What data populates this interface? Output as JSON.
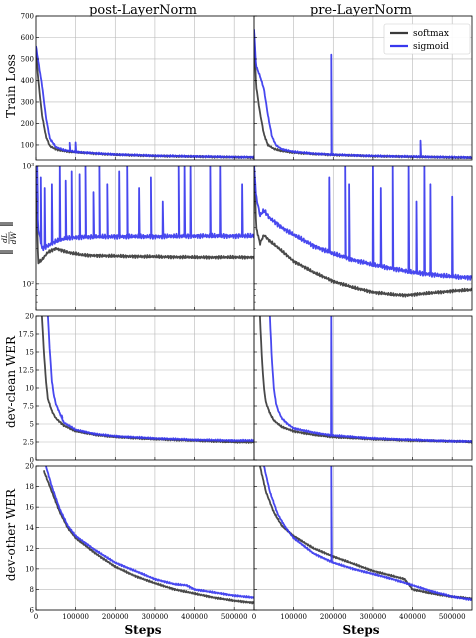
{
  "figure": {
    "column_titles": [
      "post-LayerNorm",
      "pre-LayerNorm"
    ],
    "row_labels": [
      "Train Loss",
      "||dL/dW||",
      "dev-clean WER",
      "dev-other WER"
    ],
    "gradnorm_label_parts": {
      "numerator": "dL",
      "denominator": "dW"
    },
    "xlabel": "Steps",
    "legend": {
      "entries": [
        "softmax",
        "sigmoid"
      ],
      "placement": "top-right of pre-LayerNorm Train Loss panel"
    },
    "colors": {
      "softmax": "#3a3a3a",
      "sigmoid": "#3838ee",
      "grid": "#b8b8b8"
    }
  },
  "chart_data": [
    {
      "type": "line",
      "row": "Train Loss",
      "column": "post-LayerNorm",
      "xlim": [
        0,
        550000
      ],
      "ylim": [
        30,
        700
      ],
      "x_ticks": [
        0,
        100000,
        200000,
        300000,
        400000,
        500000
      ],
      "y_ticks": [
        100,
        200,
        300,
        400,
        500,
        600,
        700
      ],
      "y_scale": "linear",
      "grid": true,
      "series": [
        {
          "name": "softmax",
          "x": [
            0,
            5000,
            15000,
            25000,
            35000,
            50000,
            70000,
            100000,
            150000,
            200000,
            300000,
            400000,
            500000,
            550000
          ],
          "y": [
            560,
            420,
            240,
            140,
            95,
            80,
            72,
            66,
            60,
            55,
            49,
            46,
            43,
            42
          ]
        },
        {
          "name": "sigmoid",
          "x": [
            0,
            5000,
            15000,
            25000,
            35000,
            50000,
            70000,
            100000,
            150000,
            200000,
            300000,
            400000,
            500000,
            550000
          ],
          "y": [
            560,
            500,
            380,
            230,
            130,
            90,
            76,
            68,
            61,
            56,
            50,
            47,
            44,
            43
          ],
          "spikes": [
            [
              85000,
              110
            ],
            [
              100000,
              112
            ]
          ]
        }
      ]
    },
    {
      "type": "line",
      "row": "Train Loss",
      "column": "pre-LayerNorm",
      "xlim": [
        0,
        550000
      ],
      "ylim": [
        30,
        700
      ],
      "x_ticks": [
        0,
        100000,
        200000,
        300000,
        400000,
        500000
      ],
      "y_ticks": [
        100,
        200,
        300,
        400,
        500,
        600,
        700
      ],
      "y_scale": "linear",
      "grid": true,
      "series": [
        {
          "name": "softmax",
          "x": [
            0,
            5000,
            15000,
            25000,
            35000,
            50000,
            70000,
            100000,
            150000,
            200000,
            300000,
            400000,
            500000,
            550000
          ],
          "y": [
            640,
            380,
            250,
            150,
            100,
            82,
            72,
            65,
            58,
            54,
            48,
            45,
            42,
            41
          ]
        },
        {
          "name": "sigmoid",
          "x": [
            0,
            5000,
            15000,
            25000,
            35000,
            45000,
            55000,
            70000,
            100000,
            150000,
            200000,
            300000,
            400000,
            500000,
            550000
          ],
          "y": [
            640,
            470,
            420,
            360,
            240,
            140,
            100,
            80,
            68,
            60,
            55,
            49,
            46,
            43,
            42
          ],
          "spikes": [
            [
              195000,
              520
            ],
            [
              420000,
              120
            ]
          ]
        }
      ]
    },
    {
      "type": "line",
      "row": "||dL/dW||",
      "column": "post-LayerNorm",
      "xlim": [
        0,
        550000
      ],
      "ylim": [
        60,
        1000
      ],
      "x_ticks": [
        0,
        100000,
        200000,
        300000,
        400000,
        500000
      ],
      "y_ticks": [
        100,
        1000
      ],
      "y_tick_labels": [
        "10²",
        "10³"
      ],
      "y_scale": "log",
      "grid": true,
      "series": [
        {
          "name": "softmax",
          "x": [
            0,
            5000,
            15000,
            30000,
            50000,
            80000,
            120000,
            200000,
            300000,
            400000,
            500000,
            550000
          ],
          "y": [
            600,
            150,
            160,
            185,
            200,
            185,
            175,
            172,
            170,
            168,
            168,
            168
          ]
        },
        {
          "name": "sigmoid",
          "x": [
            0,
            5000,
            15000,
            30000,
            50000,
            80000,
            120000,
            200000,
            300000,
            400000,
            500000,
            550000
          ],
          "y": [
            900,
            300,
            200,
            210,
            230,
            245,
            250,
            252,
            252,
            255,
            255,
            255
          ],
          "spikes": [
            [
              3000,
              1000
            ],
            [
              12000,
              800
            ],
            [
              22000,
              650
            ],
            [
              40000,
              700
            ],
            [
              60000,
              1000
            ],
            [
              75000,
              750
            ],
            [
              90000,
              900
            ],
            [
              110000,
              850
            ],
            [
              125000,
              1000
            ],
            [
              145000,
              600
            ],
            [
              160000,
              1000
            ],
            [
              180000,
              700
            ],
            [
              210000,
              900
            ],
            [
              230000,
              1000
            ],
            [
              260000,
              650
            ],
            [
              290000,
              800
            ],
            [
              320000,
              500
            ],
            [
              360000,
              1000
            ],
            [
              375000,
              1000
            ],
            [
              390000,
              1000
            ],
            [
              440000,
              1000
            ],
            [
              465000,
              1000
            ],
            [
              520000,
              700
            ]
          ]
        }
      ]
    },
    {
      "type": "line",
      "row": "||dL/dW||",
      "column": "pre-LayerNorm",
      "xlim": [
        0,
        550000
      ],
      "ylim": [
        60,
        1000
      ],
      "x_ticks": [
        0,
        100000,
        200000,
        300000,
        400000,
        500000
      ],
      "y_ticks": [
        100,
        1000
      ],
      "y_tick_labels": [
        "10²",
        "10³"
      ],
      "y_scale": "log",
      "grid": true,
      "series": [
        {
          "name": "softmax",
          "x": [
            0,
            5000,
            15000,
            25000,
            40000,
            70000,
            100000,
            150000,
            200000,
            250000,
            300000,
            350000,
            380000,
            420000,
            470000,
            500000,
            550000
          ],
          "y": [
            1000,
            300,
            220,
            260,
            230,
            190,
            155,
            125,
            105,
            93,
            85,
            81,
            80,
            82,
            85,
            87,
            89
          ]
        },
        {
          "name": "sigmoid",
          "x": [
            0,
            5000,
            15000,
            25000,
            40000,
            70000,
            100000,
            150000,
            200000,
            250000,
            300000,
            350000,
            400000,
            450000,
            500000,
            550000
          ],
          "y": [
            1000,
            550,
            380,
            420,
            360,
            300,
            260,
            210,
            180,
            160,
            145,
            135,
            125,
            120,
            115,
            113
          ],
          "spikes": [
            [
              190000,
              800
            ],
            [
              230000,
              1000
            ],
            [
              240000,
              700
            ],
            [
              300000,
              1000
            ],
            [
              320000,
              650
            ],
            [
              350000,
              1000
            ],
            [
              390000,
              1000
            ],
            [
              410000,
              500
            ],
            [
              430000,
              1000
            ],
            [
              445000,
              700
            ],
            [
              500000,
              550
            ]
          ]
        }
      ]
    },
    {
      "type": "line",
      "row": "dev-clean WER",
      "column": "post-LayerNorm",
      "xlim": [
        0,
        550000
      ],
      "ylim": [
        0,
        20
      ],
      "x_ticks": [
        0,
        100000,
        200000,
        300000,
        400000,
        500000
      ],
      "y_ticks": [
        0.0,
        2.5,
        5.0,
        7.5,
        10.0,
        12.5,
        15.0,
        17.5,
        20.0
      ],
      "y_scale": "linear",
      "grid": true,
      "series": [
        {
          "name": "softmax",
          "x": [
            15000,
            20000,
            25000,
            30000,
            40000,
            50000,
            70000,
            100000,
            150000,
            200000,
            300000,
            400000,
            500000,
            550000
          ],
          "y": [
            20,
            15,
            11,
            8.5,
            6.8,
            5.8,
            4.8,
            4.0,
            3.5,
            3.2,
            2.9,
            2.7,
            2.5,
            2.5
          ]
        },
        {
          "name": "sigmoid",
          "x": [
            30000,
            35000,
            40000,
            45000,
            50000,
            60000,
            70000,
            100000,
            150000,
            200000,
            300000,
            400000,
            500000,
            550000
          ],
          "y": [
            20,
            15,
            11,
            9,
            7.8,
            6.5,
            5.2,
            4.2,
            3.6,
            3.3,
            3.0,
            2.8,
            2.7,
            2.7
          ],
          "spikes": [
            [
              65000,
              6.2
            ]
          ]
        }
      ]
    },
    {
      "type": "line",
      "row": "dev-clean WER",
      "column": "pre-LayerNorm",
      "xlim": [
        0,
        550000
      ],
      "ylim": [
        0,
        20
      ],
      "x_ticks": [
        0,
        100000,
        200000,
        300000,
        400000,
        500000
      ],
      "y_ticks": [
        0.0,
        2.5,
        5.0,
        7.5,
        10.0,
        12.5,
        15.0,
        17.5,
        20.0
      ],
      "y_scale": "linear",
      "grid": true,
      "series": [
        {
          "name": "softmax",
          "x": [
            15000,
            20000,
            25000,
            30000,
            40000,
            50000,
            70000,
            100000,
            150000,
            200000,
            300000,
            400000,
            500000,
            550000
          ],
          "y": [
            20,
            14,
            10,
            8,
            6.5,
            5.5,
            4.6,
            4.0,
            3.5,
            3.2,
            2.9,
            2.7,
            2.6,
            2.5
          ]
        },
        {
          "name": "sigmoid",
          "x": [
            40000,
            45000,
            50000,
            55000,
            60000,
            70000,
            85000,
            100000,
            150000,
            200000,
            300000,
            400000,
            500000,
            550000
          ],
          "y": [
            20,
            14,
            10,
            8,
            7,
            5.8,
            5.0,
            4.4,
            3.8,
            3.4,
            3.0,
            2.8,
            2.6,
            2.6
          ],
          "spikes": [
            [
              195000,
              20
            ]
          ]
        }
      ]
    },
    {
      "type": "line",
      "row": "dev-other WER",
      "column": "post-LayerNorm",
      "xlim": [
        0,
        550000
      ],
      "ylim": [
        6,
        20
      ],
      "x_ticks": [
        0,
        100000,
        200000,
        300000,
        400000,
        500000
      ],
      "y_ticks": [
        6,
        8,
        10,
        12,
        14,
        16,
        18,
        20
      ],
      "y_scale": "linear",
      "grid": true,
      "series": [
        {
          "name": "softmax",
          "x": [
            20000,
            40000,
            60000,
            80000,
            100000,
            150000,
            200000,
            250000,
            300000,
            350000,
            400000,
            450000,
            500000,
            550000
          ],
          "y": [
            19.5,
            17.5,
            15.5,
            14,
            13,
            11.5,
            10.2,
            9.3,
            8.6,
            8.0,
            7.6,
            7.2,
            6.9,
            6.7
          ]
        },
        {
          "name": "sigmoid",
          "x": [
            25000,
            40000,
            60000,
            80000,
            100000,
            150000,
            200000,
            250000,
            300000,
            350000,
            380000,
            400000,
            450000,
            500000,
            550000
          ],
          "y": [
            20,
            18,
            15.8,
            14.2,
            13.2,
            11.8,
            10.6,
            9.8,
            9.0,
            8.5,
            8.4,
            8.0,
            7.7,
            7.4,
            7.2
          ]
        }
      ]
    },
    {
      "type": "line",
      "row": "dev-other WER",
      "column": "pre-LayerNorm",
      "xlim": [
        0,
        550000
      ],
      "ylim": [
        6,
        20
      ],
      "x_ticks": [
        0,
        100000,
        200000,
        300000,
        400000,
        500000
      ],
      "y_ticks": [
        6,
        8,
        10,
        12,
        14,
        16,
        18,
        20
      ],
      "y_scale": "linear",
      "grid": true,
      "series": [
        {
          "name": "softmax",
          "x": [
            15000,
            30000,
            50000,
            70000,
            100000,
            150000,
            200000,
            250000,
            300000,
            350000,
            380000,
            400000,
            450000,
            500000,
            550000
          ],
          "y": [
            20,
            17.5,
            15.5,
            14.2,
            13.2,
            12,
            11.2,
            10.5,
            9.8,
            9.3,
            9.0,
            8.0,
            7.6,
            7.3,
            7.1
          ]
        },
        {
          "name": "sigmoid",
          "x": [
            25000,
            40000,
            60000,
            80000,
            100000,
            150000,
            200000,
            250000,
            300000,
            350000,
            400000,
            450000,
            500000,
            550000
          ],
          "y": [
            20,
            17.5,
            15.3,
            14,
            13,
            11.5,
            10.6,
            10,
            9.5,
            9.0,
            8.4,
            7.8,
            7.3,
            7.0
          ],
          "spikes": [
            [
              195000,
              20
            ]
          ]
        }
      ]
    }
  ]
}
